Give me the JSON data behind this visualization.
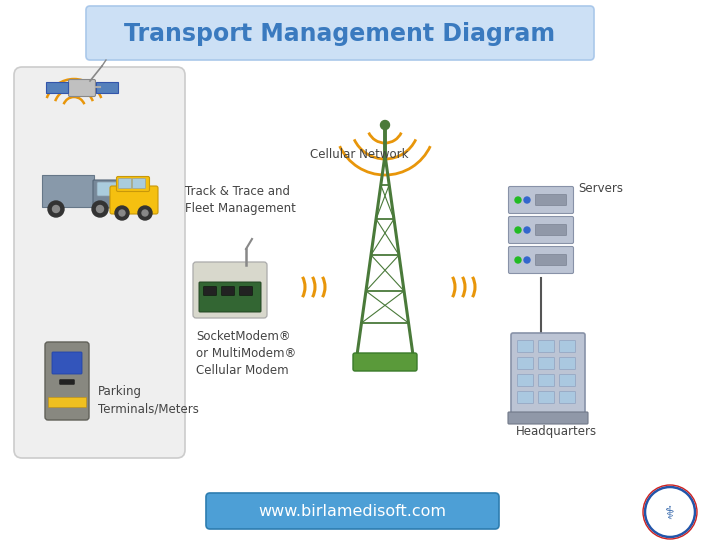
{
  "title": "Transport Management Diagram",
  "title_color": "#3a7abf",
  "title_bg": "#cce0f5",
  "title_border": "#aac8ea",
  "website": "www.birlamedisoft.com",
  "website_bg": "#4d9fd6",
  "website_color": "#ffffff",
  "bg_color": "#ffffff",
  "labels": {
    "track": "Track & Trace and\nFleet Management",
    "modem": "SocketModem®\nor MultiModem®\nCellular Modem",
    "cellular": "Cellular Network",
    "parking": "Parking\nTerminals/Meters",
    "servers": "Servers",
    "hq": "Headquarters"
  },
  "label_color": "#444444",
  "signal_color": "#e8960a",
  "left_panel_color": "#efefef",
  "left_panel_border": "#cccccc",
  "tower_color": "#4a7a3a",
  "tower_base_color": "#5a9a3a"
}
